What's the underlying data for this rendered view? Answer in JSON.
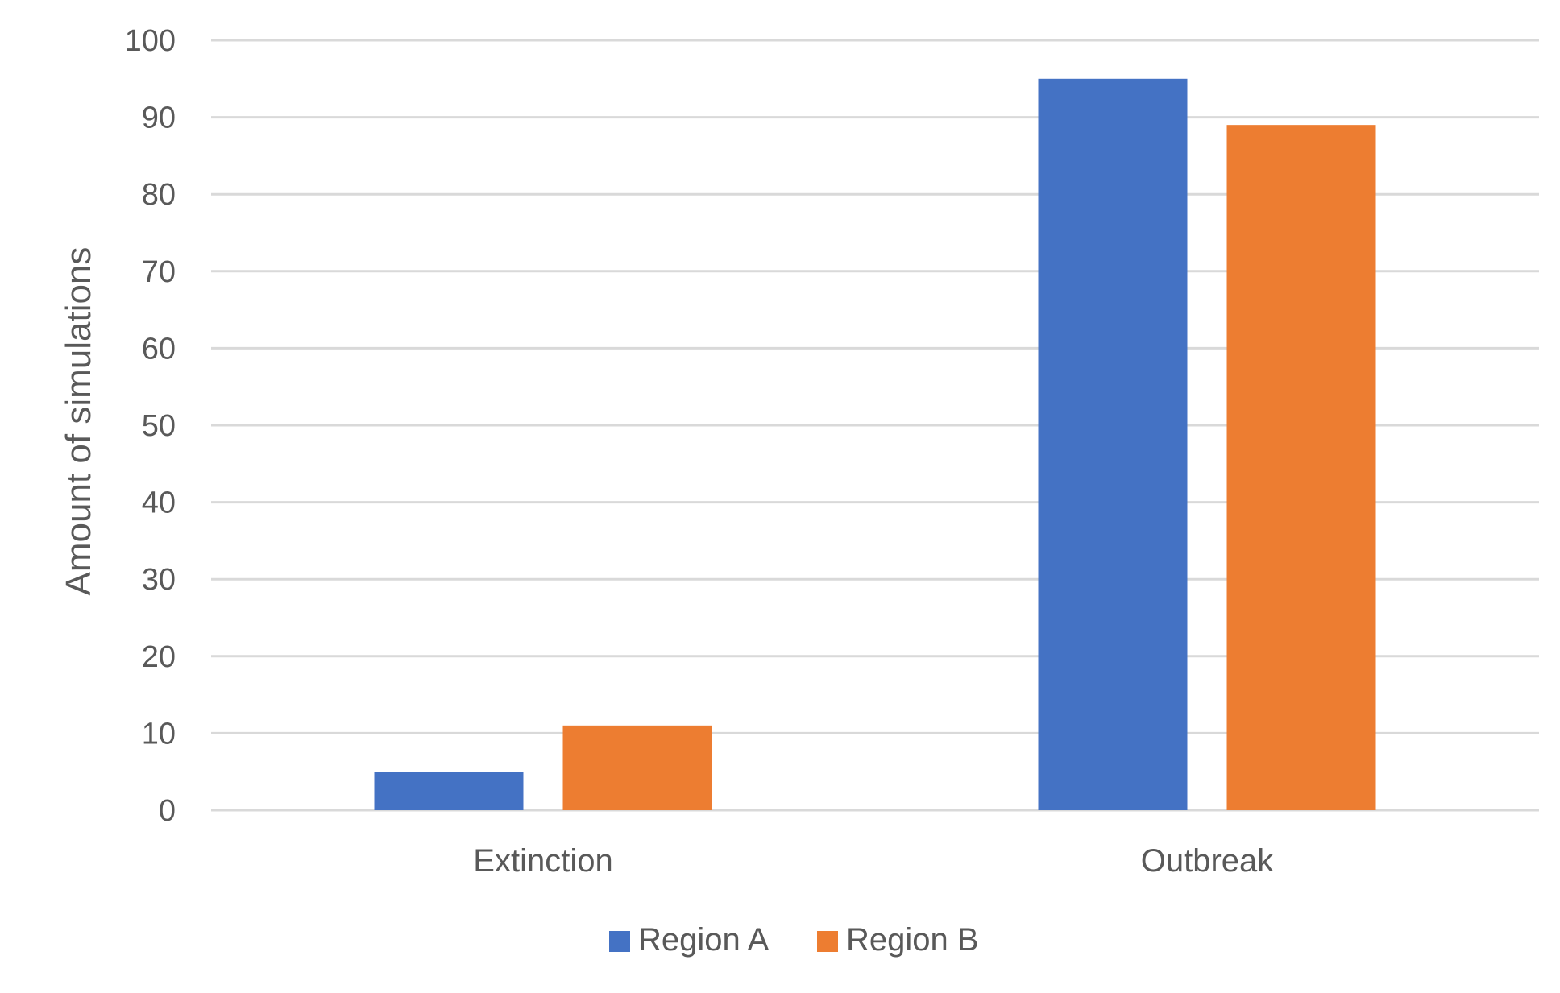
{
  "chart_data": {
    "type": "bar",
    "categories": [
      "Extinction",
      "Outbreak"
    ],
    "series": [
      {
        "name": "Region A",
        "color": "#4472C4",
        "values": [
          5,
          95
        ]
      },
      {
        "name": "Region B",
        "color": "#ED7D31",
        "values": [
          11,
          89
        ]
      }
    ],
    "ylabel": "Amount of simulations",
    "xlabel": "",
    "ylim": [
      0,
      100
    ],
    "yticks": [
      "0",
      "10",
      "20",
      "30",
      "40",
      "50",
      "60",
      "70",
      "80",
      "90",
      "100"
    ],
    "grid": true,
    "gridline_color": "#D9D9D9",
    "legend_position": "bottom"
  }
}
